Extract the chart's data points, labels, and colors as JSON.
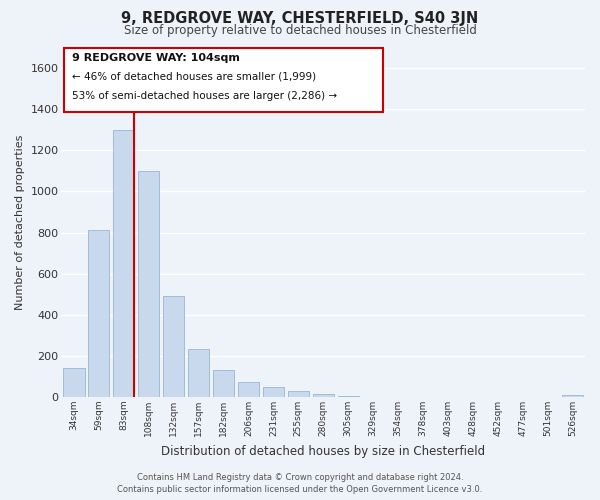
{
  "title": "9, REDGROVE WAY, CHESTERFIELD, S40 3JN",
  "subtitle": "Size of property relative to detached houses in Chesterfield",
  "xlabel": "Distribution of detached houses by size in Chesterfield",
  "ylabel": "Number of detached properties",
  "bar_color": "#c8d9ee",
  "bar_edgecolor": "#a0bcd8",
  "vline_color": "#cc0000",
  "vline_x_index": 2,
  "annotation_title": "9 REDGROVE WAY: 104sqm",
  "annotation_line1": "← 46% of detached houses are smaller (1,999)",
  "annotation_line2": "53% of semi-detached houses are larger (2,286) →",
  "annotation_box_color": "#ffffff",
  "annotation_box_edgecolor": "#cc0000",
  "categories": [
    "34sqm",
    "59sqm",
    "83sqm",
    "108sqm",
    "132sqm",
    "157sqm",
    "182sqm",
    "206sqm",
    "231sqm",
    "255sqm",
    "280sqm",
    "305sqm",
    "329sqm",
    "354sqm",
    "378sqm",
    "403sqm",
    "428sqm",
    "452sqm",
    "477sqm",
    "501sqm",
    "526sqm"
  ],
  "values": [
    140,
    810,
    1300,
    1100,
    490,
    235,
    130,
    75,
    50,
    28,
    15,
    5,
    2,
    1,
    1,
    0,
    0,
    0,
    0,
    0,
    12
  ],
  "ylim": [
    0,
    1700
  ],
  "yticks": [
    0,
    200,
    400,
    600,
    800,
    1000,
    1200,
    1400,
    1600
  ],
  "footer_line1": "Contains HM Land Registry data © Crown copyright and database right 2024.",
  "footer_line2": "Contains public sector information licensed under the Open Government Licence v3.0.",
  "background_color": "#eef2f9",
  "grid_color": "#ffffff"
}
